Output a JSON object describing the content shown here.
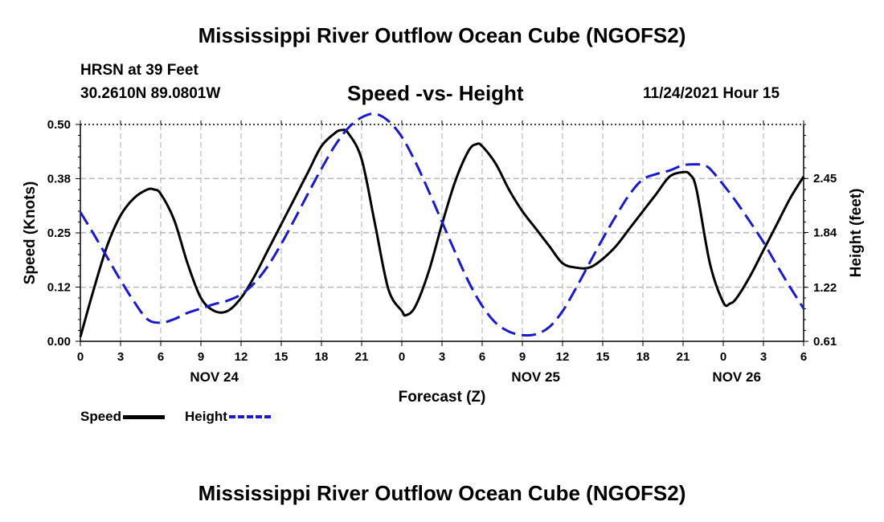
{
  "header": {
    "title": "Mississippi River Outflow Ocean Cube (NGOFS2)",
    "station": "HRSN at 39 Feet",
    "coords": "30.2610N  89.0801W",
    "subtitle": "Speed -vs- Height",
    "datetime": "11/24/2021 Hour 15"
  },
  "footer": {
    "title": "Mississippi River Outflow Ocean Cube (NGOFS2)"
  },
  "legend": {
    "speed_label": "Speed",
    "height_label": "Height"
  },
  "colors": {
    "speed": "#000000",
    "height": "#1a1acc",
    "grid": "#bbbbbb"
  },
  "chart_data": {
    "type": "line",
    "xlabel": "Forecast (Z)",
    "ylabel_left": "Speed (Knots)",
    "ylabel_right": "Height (feet)",
    "x_range": [
      0,
      54
    ],
    "x_ticks": [
      "0",
      "3",
      "6",
      "9",
      "12",
      "15",
      "18",
      "21",
      "0",
      "3",
      "6",
      "9",
      "12",
      "15",
      "18",
      "21",
      "0",
      "3",
      "6"
    ],
    "day_labels": [
      {
        "label": "NOV 24",
        "x": 10
      },
      {
        "label": "NOV 25",
        "x": 34
      },
      {
        "label": "NOV 26",
        "x": 49
      }
    ],
    "y_left": {
      "range": [
        0,
        0.5
      ],
      "ticks": [
        "0.00",
        "0.12",
        "0.25",
        "0.38",
        "0.50"
      ]
    },
    "y_right": {
      "range": [
        0.61,
        3.06
      ],
      "ticks": [
        "0.61",
        "1.22",
        "1.84",
        "2.45"
      ]
    },
    "series": [
      {
        "name": "Speed",
        "axis": "left",
        "x": [
          0,
          1,
          2,
          3,
          4,
          5,
          5.5,
          6,
          7,
          8,
          9,
          10,
          11,
          12,
          13,
          14,
          15,
          16,
          17,
          18,
          19,
          19.5,
          20,
          21,
          22,
          23,
          24,
          24.3,
          25,
          26,
          27,
          28,
          29,
          29.6,
          30,
          31,
          32,
          33,
          34,
          35,
          36,
          37,
          38,
          39,
          40,
          41,
          42,
          43,
          44,
          45,
          45.5,
          46,
          47,
          48,
          48.5,
          49,
          50,
          51,
          52,
          53,
          54
        ],
        "y": [
          0.01,
          0.12,
          0.22,
          0.29,
          0.33,
          0.35,
          0.35,
          0.34,
          0.28,
          0.18,
          0.1,
          0.07,
          0.07,
          0.1,
          0.15,
          0.21,
          0.27,
          0.33,
          0.39,
          0.45,
          0.48,
          0.487,
          0.48,
          0.42,
          0.27,
          0.12,
          0.07,
          0.06,
          0.08,
          0.16,
          0.27,
          0.37,
          0.44,
          0.455,
          0.45,
          0.41,
          0.35,
          0.3,
          0.26,
          0.22,
          0.18,
          0.17,
          0.17,
          0.19,
          0.22,
          0.26,
          0.3,
          0.34,
          0.38,
          0.39,
          0.385,
          0.35,
          0.18,
          0.09,
          0.087,
          0.1,
          0.15,
          0.21,
          0.27,
          0.33,
          0.38
        ]
      },
      {
        "name": "Height",
        "axis": "right",
        "x": [
          0,
          1,
          2,
          3,
          4,
          5,
          6,
          7,
          8,
          9,
          10,
          11,
          12,
          13,
          14,
          15,
          16,
          17,
          18,
          19,
          20,
          21,
          22,
          23,
          24,
          25,
          26,
          27,
          28,
          29,
          30,
          31,
          32,
          33,
          34,
          35,
          36,
          37,
          38,
          39,
          40,
          41,
          42,
          43,
          44,
          45,
          46,
          46.5,
          47,
          48,
          49,
          50,
          51,
          52,
          53,
          54
        ],
        "y": [
          2.07,
          1.82,
          1.56,
          1.3,
          1.06,
          0.86,
          0.82,
          0.86,
          0.93,
          0.98,
          1.03,
          1.07,
          1.14,
          1.27,
          1.46,
          1.71,
          1.99,
          2.28,
          2.56,
          2.82,
          3.02,
          3.14,
          3.18,
          3.1,
          2.92,
          2.64,
          2.31,
          1.96,
          1.61,
          1.28,
          1.01,
          0.82,
          0.72,
          0.68,
          0.69,
          0.77,
          0.95,
          1.21,
          1.49,
          1.77,
          2.03,
          2.27,
          2.44,
          2.5,
          2.54,
          2.6,
          2.61,
          2.6,
          2.56,
          2.38,
          2.18,
          1.96,
          1.73,
          1.47,
          1.22,
          0.98
        ]
      }
    ]
  }
}
